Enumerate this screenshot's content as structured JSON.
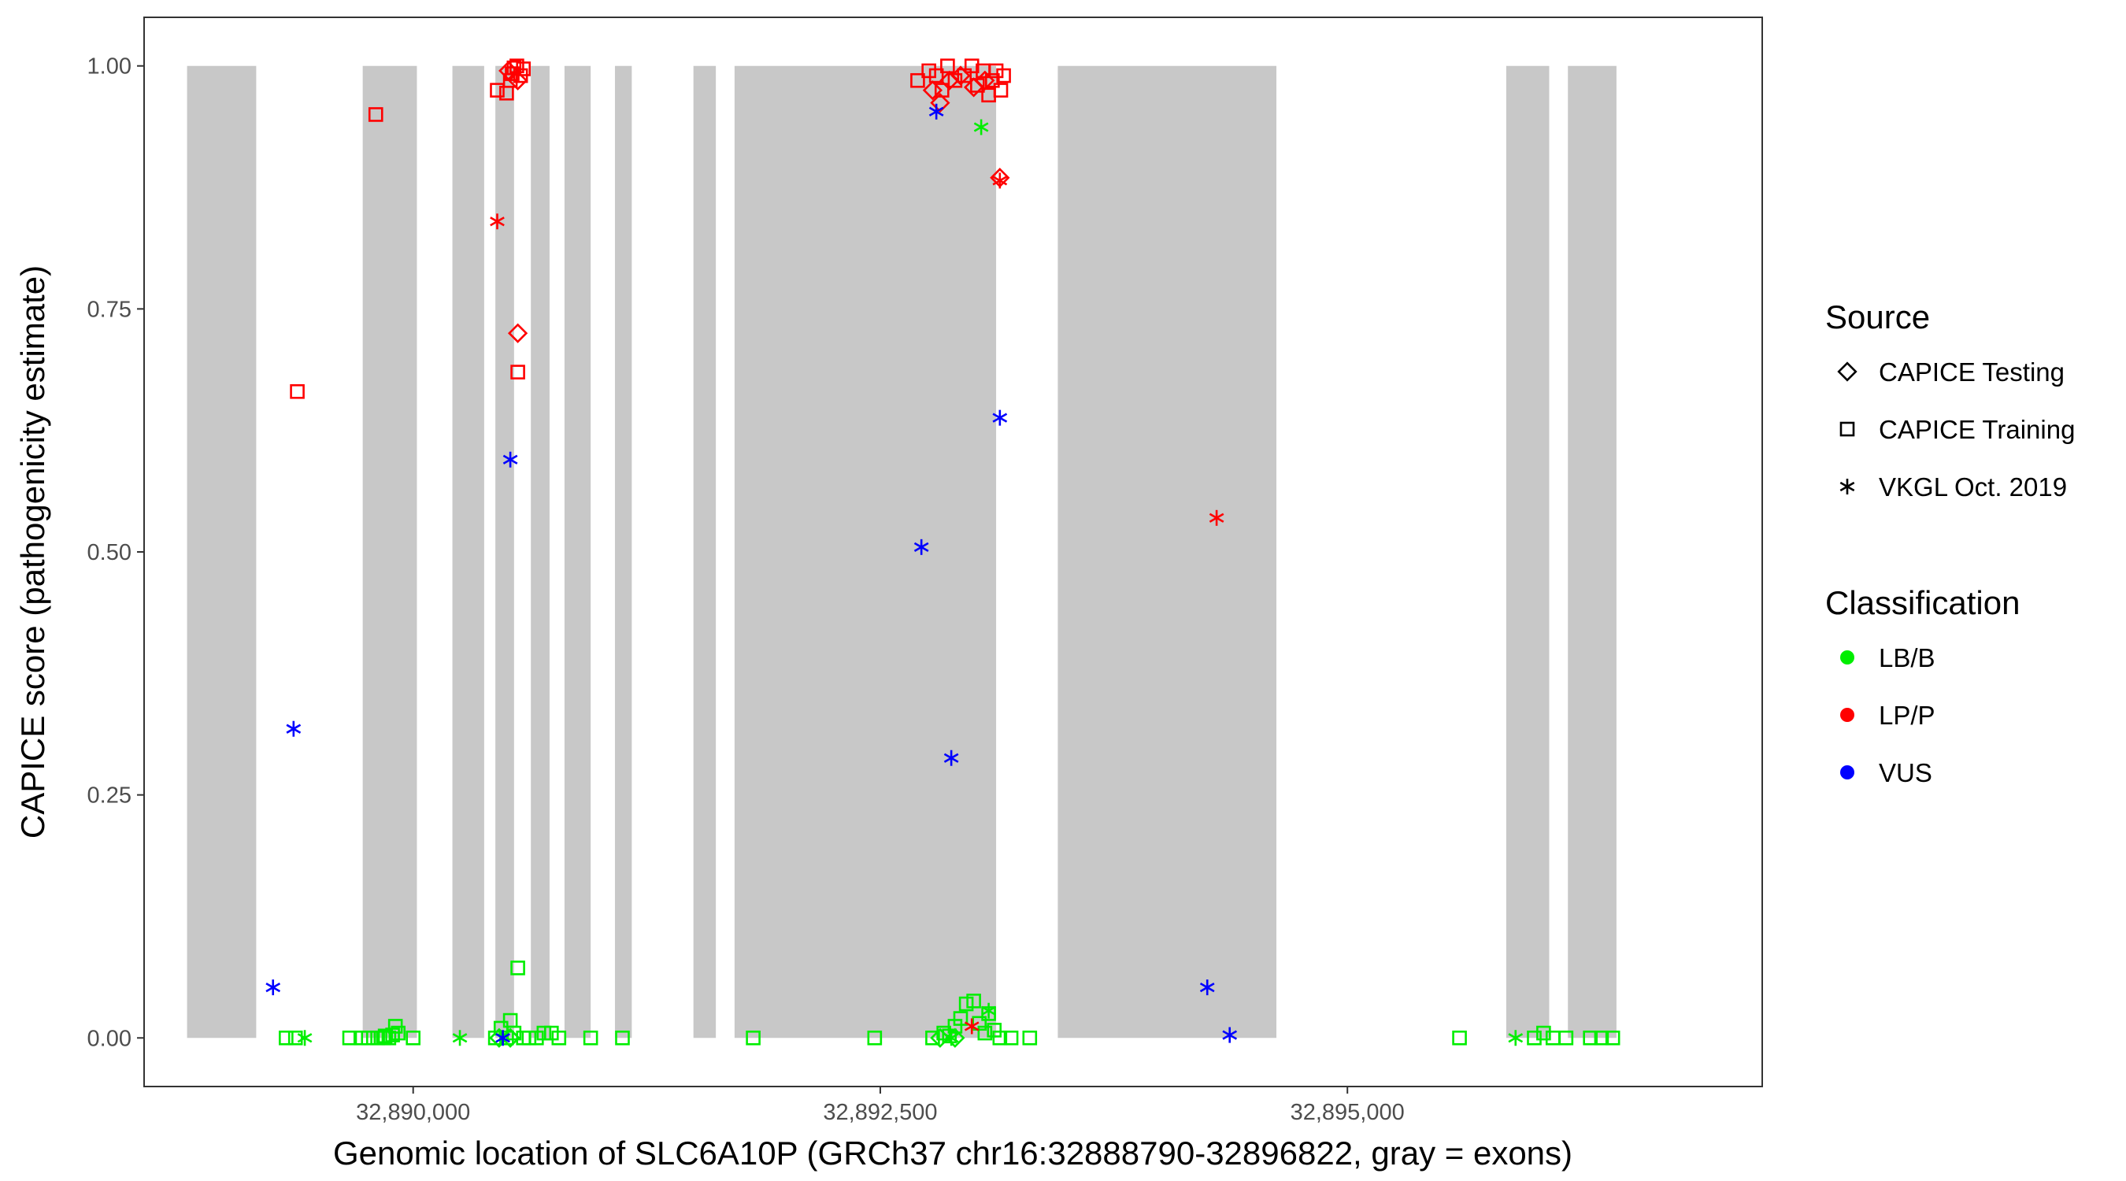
{
  "chart_data": {
    "type": "scatter",
    "xlabel": "Genomic location of SLC6A10P (GRCh37 chr16:32888790-32896822, gray = exons)",
    "ylabel": "CAPICE score (pathogenicity estimate)",
    "xlim": [
      32888560,
      32897220
    ],
    "ylim": [
      -0.05,
      1.05
    ],
    "x_ticks": [
      32890000,
      32892500,
      32895000
    ],
    "x_tick_labels": [
      "32,890,000",
      "32,892,500",
      "32,895,000"
    ],
    "y_ticks": [
      0,
      0.25,
      0.5,
      0.75,
      1
    ],
    "y_tick_labels": [
      "0.00",
      "0.25",
      "0.50",
      "0.75",
      "1.00"
    ],
    "grid": false,
    "exons": [
      [
        32888790,
        32889160
      ],
      [
        32889730,
        32890020
      ],
      [
        32890210,
        32890380
      ],
      [
        32890440,
        32890540
      ],
      [
        32890630,
        32890730
      ],
      [
        32890810,
        32890950
      ],
      [
        32891080,
        32891170
      ],
      [
        32891500,
        32891620
      ],
      [
        32891720,
        32893120
      ],
      [
        32893450,
        32894620
      ],
      [
        32895850,
        32896080
      ],
      [
        32896180,
        32896440
      ]
    ],
    "legend": {
      "placement": "right",
      "source_title": "Source",
      "source_entries": [
        {
          "label": "CAPICE Testing",
          "shape": "diamond"
        },
        {
          "label": "CAPICE Training",
          "shape": "square"
        },
        {
          "label": "VKGL Oct. 2019",
          "shape": "asterisk"
        }
      ],
      "class_title": "Classification",
      "class_entries": [
        {
          "label": "LB/B",
          "color": "#00ee00"
        },
        {
          "label": "LP/P",
          "color": "#ff0000"
        },
        {
          "label": "VUS",
          "color": "#0000ff"
        }
      ]
    },
    "series": [
      {
        "name": "CAPICE Training",
        "shape": "square",
        "points": [
          [
            32889380,
            0.665,
            "LP/P"
          ],
          [
            32889800,
            0.95,
            "LP/P"
          ],
          [
            32890450,
            0.975,
            "LP/P"
          ],
          [
            32890500,
            0.972,
            "LP/P"
          ],
          [
            32890520,
            0.985,
            "LP/P"
          ],
          [
            32890530,
            0.992,
            "LP/P"
          ],
          [
            32890555,
            1.0,
            "LP/P"
          ],
          [
            32890575,
            0.99,
            "LP/P"
          ],
          [
            32890590,
            0.997,
            "LP/P"
          ],
          [
            32890540,
            0.998,
            "LP/P"
          ],
          [
            32890560,
            0.685,
            "LP/P"
          ],
          [
            32892700,
            0.985,
            "LP/P"
          ],
          [
            32892760,
            0.995,
            "LP/P"
          ],
          [
            32892800,
            0.99,
            "LP/P"
          ],
          [
            32892830,
            0.975,
            "LP/P"
          ],
          [
            32892860,
            1.0,
            "LP/P"
          ],
          [
            32892900,
            0.985,
            "LP/P"
          ],
          [
            32892950,
            0.99,
            "LP/P"
          ],
          [
            32892990,
            1.0,
            "LP/P"
          ],
          [
            32893020,
            0.98,
            "LP/P"
          ],
          [
            32893050,
            0.995,
            "LP/P"
          ],
          [
            32893080,
            0.97,
            "LP/P"
          ],
          [
            32893100,
            0.985,
            "LP/P"
          ],
          [
            32893120,
            0.995,
            "LP/P"
          ],
          [
            32893145,
            0.975,
            "LP/P"
          ],
          [
            32893160,
            0.99,
            "LP/P"
          ],
          [
            32889320,
            0,
            "LB/B"
          ],
          [
            32889370,
            0,
            "LB/B"
          ],
          [
            32889660,
            0,
            "LB/B"
          ],
          [
            32889720,
            0,
            "LB/B"
          ],
          [
            32889760,
            0,
            "LB/B"
          ],
          [
            32889810,
            0,
            "LB/B"
          ],
          [
            32889840,
            0,
            "LB/B"
          ],
          [
            32889870,
            0,
            "LB/B"
          ],
          [
            32889890,
            0.003,
            "LB/B"
          ],
          [
            32889905,
            0.012,
            "LB/B"
          ],
          [
            32889920,
            0.005,
            "LB/B"
          ],
          [
            32889850,
            0.002,
            "LB/B"
          ],
          [
            32890000,
            0,
            "LB/B"
          ],
          [
            32890440,
            0,
            "LB/B"
          ],
          [
            32890470,
            0.01,
            "LB/B"
          ],
          [
            32890500,
            0,
            "LB/B"
          ],
          [
            32890520,
            0.018,
            "LB/B"
          ],
          [
            32890540,
            0.005,
            "LB/B"
          ],
          [
            32890560,
            0.072,
            "LB/B"
          ],
          [
            32890590,
            0,
            "LB/B"
          ],
          [
            32890620,
            0,
            "LB/B"
          ],
          [
            32890660,
            0,
            "LB/B"
          ],
          [
            32890700,
            0.005,
            "LB/B"
          ],
          [
            32890740,
            0.005,
            "LB/B"
          ],
          [
            32890780,
            0,
            "LB/B"
          ],
          [
            32890950,
            0,
            "LB/B"
          ],
          [
            32891120,
            0,
            "LB/B"
          ],
          [
            32891820,
            0,
            "LB/B"
          ],
          [
            32892470,
            0,
            "LB/B"
          ],
          [
            32892780,
            0,
            "LB/B"
          ],
          [
            32892840,
            0.005,
            "LB/B"
          ],
          [
            32892870,
            0.002,
            "LB/B"
          ],
          [
            32892900,
            0.012,
            "LB/B"
          ],
          [
            32892930,
            0.02,
            "LB/B"
          ],
          [
            32892960,
            0.035,
            "LB/B"
          ],
          [
            32893000,
            0.038,
            "LB/B"
          ],
          [
            32893030,
            0.015,
            "LB/B"
          ],
          [
            32893060,
            0.005,
            "LB/B"
          ],
          [
            32893080,
            0.025,
            "LB/B"
          ],
          [
            32893110,
            0.008,
            "LB/B"
          ],
          [
            32893140,
            0,
            "LB/B"
          ],
          [
            32893200,
            0,
            "LB/B"
          ],
          [
            32893300,
            0,
            "LB/B"
          ],
          [
            32895600,
            0,
            "LB/B"
          ],
          [
            32896000,
            0,
            "LB/B"
          ],
          [
            32896050,
            0.005,
            "LB/B"
          ],
          [
            32896100,
            0,
            "LB/B"
          ],
          [
            32896170,
            0,
            "LB/B"
          ],
          [
            32896300,
            0,
            "LB/B"
          ],
          [
            32896360,
            0,
            "LB/B"
          ],
          [
            32896420,
            0,
            "LB/B"
          ]
        ]
      },
      {
        "name": "CAPICE Testing",
        "shape": "diamond",
        "points": [
          [
            32890560,
            0.725,
            "LP/P"
          ],
          [
            32890510,
            0.995,
            "LP/P"
          ],
          [
            32890560,
            0.985,
            "LP/P"
          ],
          [
            32892780,
            0.975,
            "LP/P"
          ],
          [
            32892820,
            0.962,
            "LP/P"
          ],
          [
            32892870,
            0.985,
            "LP/P"
          ],
          [
            32892930,
            0.99,
            "LP/P"
          ],
          [
            32893000,
            0.978,
            "LP/P"
          ],
          [
            32893060,
            0.985,
            "LP/P"
          ],
          [
            32893140,
            0.885,
            "LP/P"
          ],
          [
            32890460,
            0,
            "LB/B"
          ],
          [
            32890520,
            0,
            "LB/B"
          ],
          [
            32892820,
            0,
            "LB/B"
          ],
          [
            32892900,
            0,
            "LB/B"
          ]
        ]
      },
      {
        "name": "VKGL Oct. 2019",
        "shape": "asterisk",
        "points": [
          [
            32889250,
            0.052,
            "VUS"
          ],
          [
            32889360,
            0.318,
            "VUS"
          ],
          [
            32890520,
            0.595,
            "VUS"
          ],
          [
            32892720,
            0.505,
            "VUS"
          ],
          [
            32892800,
            0.953,
            "VUS"
          ],
          [
            32892880,
            0.288,
            "VUS"
          ],
          [
            32893140,
            0.638,
            "VUS"
          ],
          [
            32894250,
            0.052,
            "VUS"
          ],
          [
            32894370,
            0.003,
            "VUS"
          ],
          [
            32890480,
            0,
            "VUS"
          ],
          [
            32890450,
            0.84,
            "LP/P"
          ],
          [
            32893140,
            0.882,
            "LP/P"
          ],
          [
            32894300,
            0.535,
            "LP/P"
          ],
          [
            32892990,
            0.012,
            "LP/P"
          ],
          [
            32893040,
            0.937,
            "LB/B"
          ],
          [
            32890250,
            0,
            "LB/B"
          ],
          [
            32895900,
            0,
            "LB/B"
          ],
          [
            32892880,
            0,
            "LB/B"
          ],
          [
            32889420,
            0,
            "LB/B"
          ],
          [
            32893080,
            0.028,
            "LB/B"
          ]
        ]
      }
    ]
  }
}
